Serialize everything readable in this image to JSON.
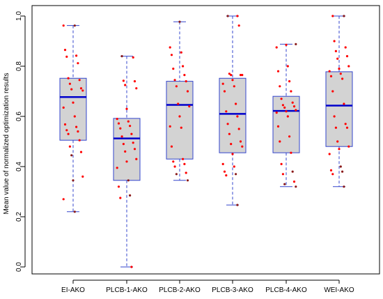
{
  "chart_data": {
    "type": "box",
    "ylabel": "Mean value of normalized optimization results",
    "ylim": [
      0.0,
      1.0
    ],
    "y_ticks": [
      "0.0",
      "0.2",
      "0.4",
      "0.6",
      "0.8",
      "1.0"
    ],
    "categories": [
      "EI-AKO",
      "PLCB-1-AKO",
      "PLCB-2-AKO",
      "PLCB-3-AKO",
      "PLCB-4-AKO",
      "WEI-AKO"
    ],
    "boxes": [
      {
        "name": "EI-AKO",
        "whisker_low": 0.22,
        "q1": 0.505,
        "median": 0.677,
        "q3": 0.752,
        "whisker_high": 0.962,
        "points": [
          {
            "y": 0.962,
            "dark": false
          },
          {
            "y": 0.962,
            "dark": true
          },
          {
            "y": 0.865,
            "dark": false
          },
          {
            "y": 0.842,
            "dark": false
          },
          {
            "y": 0.838,
            "dark": false
          },
          {
            "y": 0.812,
            "dark": false
          },
          {
            "y": 0.752,
            "dark": false
          },
          {
            "y": 0.745,
            "dark": false
          },
          {
            "y": 0.73,
            "dark": false
          },
          {
            "y": 0.712,
            "dark": false
          },
          {
            "y": 0.708,
            "dark": false
          },
          {
            "y": 0.703,
            "dark": false
          },
          {
            "y": 0.655,
            "dark": false
          },
          {
            "y": 0.635,
            "dark": false
          },
          {
            "y": 0.6,
            "dark": false
          },
          {
            "y": 0.568,
            "dark": false
          },
          {
            "y": 0.558,
            "dark": false
          },
          {
            "y": 0.545,
            "dark": false
          },
          {
            "y": 0.54,
            "dark": false
          },
          {
            "y": 0.53,
            "dark": false
          },
          {
            "y": 0.505,
            "dark": false
          },
          {
            "y": 0.48,
            "dark": false
          },
          {
            "y": 0.458,
            "dark": false
          },
          {
            "y": 0.445,
            "dark": true
          },
          {
            "y": 0.36,
            "dark": false
          },
          {
            "y": 0.345,
            "dark": true
          },
          {
            "y": 0.27,
            "dark": false
          },
          {
            "y": 0.22,
            "dark": true
          }
        ]
      },
      {
        "name": "PLCB-1-AKO",
        "whisker_low": 0.0,
        "q1": 0.345,
        "median": 0.512,
        "q3": 0.592,
        "whisker_high": 0.84,
        "points": [
          {
            "y": 0.84,
            "dark": true
          },
          {
            "y": 0.835,
            "dark": false
          },
          {
            "y": 0.742,
            "dark": false
          },
          {
            "y": 0.74,
            "dark": false
          },
          {
            "y": 0.725,
            "dark": false
          },
          {
            "y": 0.712,
            "dark": false
          },
          {
            "y": 0.63,
            "dark": false
          },
          {
            "y": 0.59,
            "dark": false
          },
          {
            "y": 0.58,
            "dark": false
          },
          {
            "y": 0.572,
            "dark": false
          },
          {
            "y": 0.562,
            "dark": false
          },
          {
            "y": 0.552,
            "dark": false
          },
          {
            "y": 0.53,
            "dark": false
          },
          {
            "y": 0.52,
            "dark": false
          },
          {
            "y": 0.495,
            "dark": false
          },
          {
            "y": 0.49,
            "dark": false
          },
          {
            "y": 0.47,
            "dark": false
          },
          {
            "y": 0.46,
            "dark": false
          },
          {
            "y": 0.43,
            "dark": false
          },
          {
            "y": 0.42,
            "dark": false
          },
          {
            "y": 0.395,
            "dark": false
          },
          {
            "y": 0.345,
            "dark": true
          },
          {
            "y": 0.32,
            "dark": false
          },
          {
            "y": 0.285,
            "dark": true
          },
          {
            "y": 0.275,
            "dark": false
          },
          {
            "y": 0.0,
            "dark": false
          }
        ]
      },
      {
        "name": "PLCB-2-AKO",
        "whisker_low": 0.345,
        "q1": 0.43,
        "median": 0.646,
        "q3": 0.74,
        "whisker_high": 0.977,
        "points": [
          {
            "y": 0.977,
            "dark": true
          },
          {
            "y": 0.875,
            "dark": false
          },
          {
            "y": 0.855,
            "dark": false
          },
          {
            "y": 0.845,
            "dark": false
          },
          {
            "y": 0.8,
            "dark": false
          },
          {
            "y": 0.79,
            "dark": false
          },
          {
            "y": 0.765,
            "dark": false
          },
          {
            "y": 0.745,
            "dark": false
          },
          {
            "y": 0.74,
            "dark": false
          },
          {
            "y": 0.72,
            "dark": false
          },
          {
            "y": 0.7,
            "dark": false
          },
          {
            "y": 0.65,
            "dark": false
          },
          {
            "y": 0.64,
            "dark": false
          },
          {
            "y": 0.6,
            "dark": false
          },
          {
            "y": 0.56,
            "dark": false
          },
          {
            "y": 0.555,
            "dark": false
          },
          {
            "y": 0.48,
            "dark": false
          },
          {
            "y": 0.43,
            "dark": false
          },
          {
            "y": 0.42,
            "dark": false
          },
          {
            "y": 0.41,
            "dark": false
          },
          {
            "y": 0.4,
            "dark": false
          },
          {
            "y": 0.375,
            "dark": false
          },
          {
            "y": 0.37,
            "dark": true
          },
          {
            "y": 0.345,
            "dark": true
          }
        ]
      },
      {
        "name": "PLCB-3-AKO",
        "whisker_low": 0.247,
        "q1": 0.455,
        "median": 0.61,
        "q3": 0.752,
        "whisker_high": 1.0,
        "points": [
          {
            "y": 1.0,
            "dark": false
          },
          {
            "y": 1.0,
            "dark": true
          },
          {
            "y": 0.962,
            "dark": false
          },
          {
            "y": 0.77,
            "dark": false
          },
          {
            "y": 0.765,
            "dark": false
          },
          {
            "y": 0.765,
            "dark": false
          },
          {
            "y": 0.765,
            "dark": false
          },
          {
            "y": 0.745,
            "dark": false
          },
          {
            "y": 0.73,
            "dark": false
          },
          {
            "y": 0.72,
            "dark": false
          },
          {
            "y": 0.7,
            "dark": false
          },
          {
            "y": 0.65,
            "dark": false
          },
          {
            "y": 0.62,
            "dark": false
          },
          {
            "y": 0.6,
            "dark": false
          },
          {
            "y": 0.57,
            "dark": false
          },
          {
            "y": 0.55,
            "dark": false
          },
          {
            "y": 0.53,
            "dark": false
          },
          {
            "y": 0.5,
            "dark": false
          },
          {
            "y": 0.49,
            "dark": false
          },
          {
            "y": 0.48,
            "dark": false
          },
          {
            "y": 0.45,
            "dark": false
          },
          {
            "y": 0.41,
            "dark": false
          },
          {
            "y": 0.4,
            "dark": false
          },
          {
            "y": 0.38,
            "dark": false
          },
          {
            "y": 0.37,
            "dark": true
          },
          {
            "y": 0.365,
            "dark": false
          },
          {
            "y": 0.247,
            "dark": true
          }
        ]
      },
      {
        "name": "PLCB-4-AKO",
        "whisker_low": 0.32,
        "q1": 0.455,
        "median": 0.622,
        "q3": 0.68,
        "whisker_high": 0.888,
        "points": [
          {
            "y": 0.888,
            "dark": true
          },
          {
            "y": 0.885,
            "dark": false
          },
          {
            "y": 0.875,
            "dark": false
          },
          {
            "y": 0.8,
            "dark": false
          },
          {
            "y": 0.78,
            "dark": false
          },
          {
            "y": 0.74,
            "dark": false
          },
          {
            "y": 0.72,
            "dark": false
          },
          {
            "y": 0.7,
            "dark": false
          },
          {
            "y": 0.67,
            "dark": false
          },
          {
            "y": 0.655,
            "dark": false
          },
          {
            "y": 0.645,
            "dark": false
          },
          {
            "y": 0.64,
            "dark": false
          },
          {
            "y": 0.635,
            "dark": false
          },
          {
            "y": 0.625,
            "dark": false
          },
          {
            "y": 0.62,
            "dark": false
          },
          {
            "y": 0.615,
            "dark": false
          },
          {
            "y": 0.6,
            "dark": false
          },
          {
            "y": 0.56,
            "dark": false
          },
          {
            "y": 0.52,
            "dark": false
          },
          {
            "y": 0.5,
            "dark": false
          },
          {
            "y": 0.455,
            "dark": false
          },
          {
            "y": 0.41,
            "dark": false
          },
          {
            "y": 0.38,
            "dark": true
          },
          {
            "y": 0.37,
            "dark": false
          },
          {
            "y": 0.34,
            "dark": false
          },
          {
            "y": 0.33,
            "dark": true
          },
          {
            "y": 0.32,
            "dark": true
          }
        ]
      },
      {
        "name": "WEI-AKO",
        "whisker_low": 0.32,
        "q1": 0.48,
        "median": 0.643,
        "q3": 0.778,
        "whisker_high": 1.0,
        "points": [
          {
            "y": 1.0,
            "dark": false
          },
          {
            "y": 1.0,
            "dark": true
          },
          {
            "y": 0.9,
            "dark": false
          },
          {
            "y": 0.875,
            "dark": false
          },
          {
            "y": 0.86,
            "dark": false
          },
          {
            "y": 0.84,
            "dark": false
          },
          {
            "y": 0.83,
            "dark": false
          },
          {
            "y": 0.8,
            "dark": false
          },
          {
            "y": 0.79,
            "dark": false
          },
          {
            "y": 0.78,
            "dark": false
          },
          {
            "y": 0.77,
            "dark": false
          },
          {
            "y": 0.76,
            "dark": false
          },
          {
            "y": 0.75,
            "dark": false
          },
          {
            "y": 0.7,
            "dark": false
          },
          {
            "y": 0.65,
            "dark": false
          },
          {
            "y": 0.6,
            "dark": false
          },
          {
            "y": 0.57,
            "dark": false
          },
          {
            "y": 0.555,
            "dark": false
          },
          {
            "y": 0.555,
            "dark": false
          },
          {
            "y": 0.5,
            "dark": false
          },
          {
            "y": 0.48,
            "dark": false
          },
          {
            "y": 0.47,
            "dark": false
          },
          {
            "y": 0.45,
            "dark": false
          },
          {
            "y": 0.4,
            "dark": true
          },
          {
            "y": 0.385,
            "dark": false
          },
          {
            "y": 0.38,
            "dark": true
          },
          {
            "y": 0.37,
            "dark": false
          },
          {
            "y": 0.32,
            "dark": true
          }
        ]
      }
    ],
    "grid": false,
    "legend": "none",
    "colors": {
      "box_fill": "#d3d3d3",
      "box_border": "#3344cc",
      "median": "#0000cc",
      "whisker": "#3344cc",
      "point": "#ff0000",
      "point_dark": "#8b1a1a",
      "frame": "#000000"
    }
  }
}
